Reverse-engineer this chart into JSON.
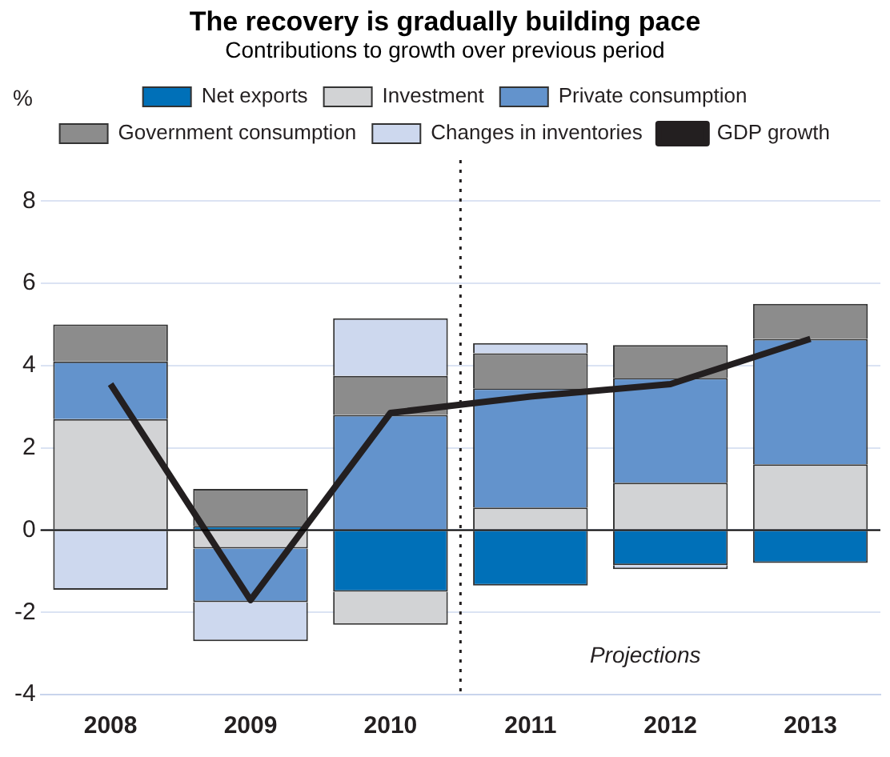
{
  "chart_data": {
    "type": "bar",
    "title": "The recovery is gradually building pace",
    "subtitle": "Contributions to growth over previous period",
    "ylabel": "%",
    "x": [
      2008,
      2009,
      2010,
      2011,
      2012,
      2013
    ],
    "xlim": [
      2007.5,
      2013.5
    ],
    "xticks": [
      2008,
      2009,
      2010,
      2011,
      2012,
      2013
    ],
    "ylim": [
      -4,
      9
    ],
    "yticks": [
      -4,
      -2,
      0,
      2,
      4,
      6,
      8
    ],
    "stacked": true,
    "grid": "y",
    "legend": "top",
    "series": [
      {
        "name": "Net exports",
        "color": "#0070b8",
        "values": [
          0,
          0.1,
          -1.5,
          -1.35,
          -0.85,
          -0.8
        ]
      },
      {
        "name": "Investment",
        "color": "#d2d3d5",
        "values": [
          2.7,
          -0.45,
          -0.8,
          0.55,
          1.15,
          1.6
        ]
      },
      {
        "name": "Private consumption",
        "color": "#6393cc",
        "values": [
          1.4,
          -1.3,
          2.8,
          2.9,
          2.55,
          3.05
        ]
      },
      {
        "name": "Government consumption",
        "color": "#8c8c8c",
        "values": [
          0.9,
          0.9,
          0.95,
          0.85,
          0.8,
          0.85
        ]
      },
      {
        "name": "Changes in inventories",
        "color": "#cdd8ee",
        "values": [
          -1.45,
          -0.95,
          1.4,
          0.25,
          -0.1,
          0
        ]
      },
      {
        "name": "GDP growth",
        "type": "line",
        "color": "#231f20",
        "values": [
          3.55,
          -1.7,
          2.85,
          3.25,
          3.55,
          4.65
        ]
      }
    ],
    "ref_lines": [
      {
        "axis": "x",
        "value": 2010.5,
        "line_style": "dotted",
        "color": "#231f20"
      }
    ],
    "annotations": [
      "Projections"
    ]
  }
}
